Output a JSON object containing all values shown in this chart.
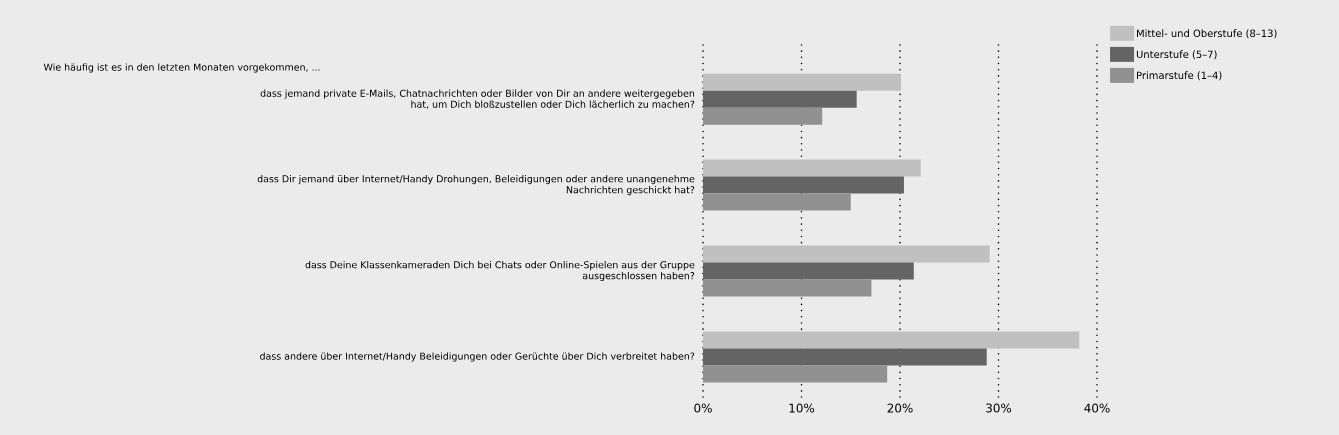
{
  "chart_data": {
    "type": "bar",
    "orientation": "horizontal",
    "title": "Wie häufig ist es in den letzten Monaten vorgekommen, ...",
    "categories": [
      "dass jemand private E-Mails, Chatnachrichten oder Bilder von Dir an andere weitergegeben hat, um Dich bloßzustellen oder Dich lächerlich zu machen?",
      "dass Dir jemand über Internet/Handy Drohungen, Beleidigungen oder andere unangenehme Nachrichten geschickt hat?",
      "dass Deine Klassenkameraden Dich bei Chats oder Online-Spielen aus der Gruppe ausgeschlossen haben?",
      "dass andere über Internet/Handy Beleidigungen oder Gerüchte über Dich verbreitet haben?"
    ],
    "series": [
      {
        "name": "Mittel- und Oberstufe (8–13)",
        "color": "#c0c0c0",
        "values": [
          20.1,
          22.1,
          29.1,
          38.2
        ]
      },
      {
        "name": "Unterstufe (5–7)",
        "color": "#646464",
        "values": [
          15.6,
          20.4,
          21.4,
          28.8
        ]
      },
      {
        "name": "Primarstufe (1–4)",
        "color": "#919191",
        "values": [
          12.1,
          15.0,
          17.1,
          18.7
        ]
      }
    ],
    "xlim": [
      0,
      40
    ],
    "xticks": [
      {
        "value": 0,
        "label": "0%"
      },
      {
        "value": 10,
        "label": "10%"
      },
      {
        "value": 20,
        "label": "20%"
      },
      {
        "value": 30,
        "label": "30%"
      },
      {
        "value": 40,
        "label": "40%"
      }
    ],
    "grid": "x",
    "legend": "top right"
  }
}
